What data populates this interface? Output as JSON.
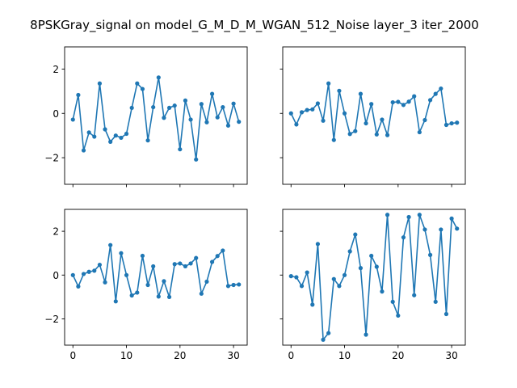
{
  "figure": {
    "title": "8PSKGray_signal on model_G_M_D_M_WGAN_512_Noise layer_3 iter_2000",
    "color": "#1f77b4"
  },
  "chart_data": [
    {
      "type": "line",
      "title": "",
      "xlabel": "",
      "ylabel": "",
      "xlim": [
        -1.55,
        32.55
      ],
      "ylim": [
        -3.2,
        3.0
      ],
      "xticks": [
        0,
        10,
        20,
        30
      ],
      "yticks": [
        -2,
        0,
        2
      ],
      "show_xtick_labels": false,
      "show_ytick_labels": true,
      "grid": false,
      "markers": true,
      "series": [
        {
          "x": [
            0,
            1,
            2,
            3,
            4,
            5,
            6,
            7,
            8,
            9,
            10,
            11,
            12,
            13,
            14,
            15,
            16,
            17,
            18,
            19,
            20,
            21,
            22,
            23,
            24,
            25,
            26,
            27,
            28,
            29,
            30,
            31
          ],
          "values": [
            -0.28,
            0.83,
            -1.67,
            -0.86,
            -1.05,
            1.35,
            -0.72,
            -1.28,
            -1.0,
            -1.1,
            -0.92,
            0.25,
            1.35,
            1.1,
            -1.22,
            0.28,
            1.62,
            -0.2,
            0.25,
            0.35,
            -1.62,
            0.58,
            -0.28,
            -2.08,
            0.42,
            -0.4,
            0.88,
            -0.18,
            0.28,
            -0.55,
            0.44,
            -0.38
          ]
        }
      ]
    },
    {
      "type": "line",
      "title": "",
      "xlabel": "",
      "ylabel": "",
      "xlim": [
        -1.55,
        32.55
      ],
      "ylim": [
        -3.2,
        3.0
      ],
      "xticks": [
        0,
        10,
        20,
        30
      ],
      "yticks": [
        -2,
        0,
        2
      ],
      "show_xtick_labels": false,
      "show_ytick_labels": false,
      "grid": false,
      "markers": true,
      "series": [
        {
          "x": [
            0,
            1,
            2,
            3,
            4,
            5,
            6,
            7,
            8,
            9,
            10,
            11,
            12,
            13,
            14,
            15,
            16,
            17,
            18,
            19,
            20,
            21,
            22,
            23,
            24,
            25,
            26,
            27,
            28,
            29,
            30,
            31
          ],
          "values": [
            0.0,
            -0.5,
            0.05,
            0.15,
            0.18,
            0.45,
            -0.33,
            1.35,
            -1.2,
            1.02,
            0.0,
            -0.93,
            -0.8,
            0.88,
            -0.45,
            0.42,
            -0.95,
            -0.28,
            -0.98,
            0.5,
            0.52,
            0.38,
            0.53,
            0.77,
            -0.85,
            -0.3,
            0.6,
            0.88,
            1.12,
            -0.52,
            -0.45,
            -0.42
          ]
        }
      ]
    },
    {
      "type": "line",
      "title": "",
      "xlabel": "",
      "ylabel": "",
      "xlim": [
        -1.55,
        32.55
      ],
      "ylim": [
        -3.2,
        3.0
      ],
      "xticks": [
        0,
        10,
        20,
        30
      ],
      "yticks": [
        -2,
        0,
        2
      ],
      "show_xtick_labels": true,
      "show_ytick_labels": true,
      "grid": false,
      "markers": true,
      "series": [
        {
          "x": [
            0,
            1,
            2,
            3,
            4,
            5,
            6,
            7,
            8,
            9,
            10,
            11,
            12,
            13,
            14,
            15,
            16,
            17,
            18,
            19,
            20,
            21,
            22,
            23,
            24,
            25,
            26,
            27,
            28,
            29,
            30,
            31
          ],
          "values": [
            0.0,
            -0.52,
            0.05,
            0.15,
            0.2,
            0.47,
            -0.33,
            1.37,
            -1.2,
            1.0,
            0.0,
            -0.93,
            -0.8,
            0.88,
            -0.45,
            0.4,
            -0.98,
            -0.28,
            -1.0,
            0.5,
            0.53,
            0.4,
            0.53,
            0.78,
            -0.85,
            -0.3,
            0.6,
            0.87,
            1.12,
            -0.5,
            -0.45,
            -0.43
          ]
        }
      ]
    },
    {
      "type": "line",
      "title": "",
      "xlabel": "",
      "ylabel": "",
      "xlim": [
        -1.55,
        32.55
      ],
      "ylim": [
        -3.2,
        3.0
      ],
      "xticks": [
        0,
        10,
        20,
        30
      ],
      "yticks": [
        -2,
        0,
        2
      ],
      "show_xtick_labels": true,
      "show_ytick_labels": false,
      "grid": false,
      "markers": true,
      "series": [
        {
          "x": [
            0,
            1,
            2,
            3,
            4,
            5,
            6,
            7,
            8,
            9,
            10,
            11,
            12,
            13,
            14,
            15,
            16,
            17,
            18,
            19,
            20,
            21,
            22,
            23,
            24,
            25,
            26,
            27,
            28,
            29,
            30,
            31
          ],
          "values": [
            -0.05,
            -0.1,
            -0.5,
            0.12,
            -1.35,
            1.42,
            -2.95,
            -2.65,
            -0.18,
            -0.5,
            0.0,
            1.08,
            1.85,
            0.32,
            -2.72,
            0.88,
            0.38,
            -0.75,
            2.75,
            -1.22,
            -1.85,
            1.72,
            2.65,
            -0.92,
            2.75,
            2.08,
            0.92,
            -1.22,
            2.08,
            -1.78,
            2.58,
            2.12
          ]
        }
      ]
    }
  ]
}
